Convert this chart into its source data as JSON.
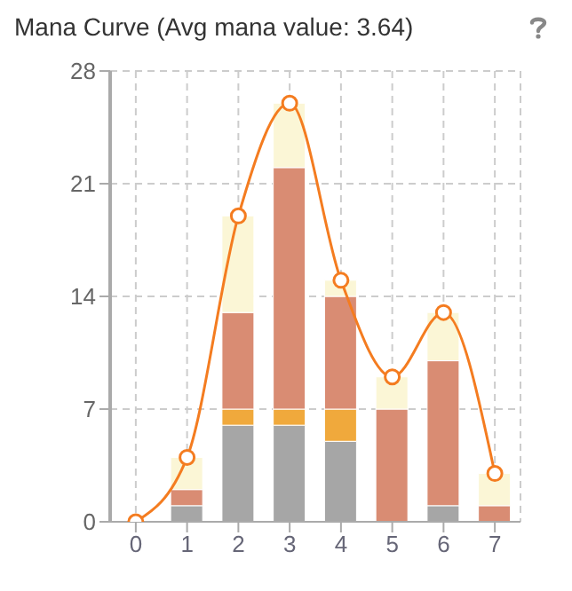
{
  "chart_data": {
    "type": "bar",
    "title": "Mana Curve (Avg mana value: 3.64)",
    "categories": [
      "0",
      "1",
      "2",
      "3",
      "4",
      "5",
      "6",
      "7"
    ],
    "stacked": true,
    "series": [
      {
        "color": "#a6a6a6",
        "values": [
          0,
          1,
          6,
          6,
          5,
          0,
          1,
          0
        ]
      },
      {
        "color": "#f0a93c",
        "values": [
          0,
          0,
          1,
          1,
          2,
          0,
          0,
          0
        ]
      },
      {
        "color": "#d98c73",
        "values": [
          0,
          1,
          6,
          15,
          7,
          7,
          9,
          1
        ]
      },
      {
        "color": "#fbf6d6",
        "values": [
          0,
          2,
          6,
          4,
          1,
          2,
          3,
          2
        ]
      },
      {
        "type": "line",
        "color": "#f47c20",
        "values": [
          0,
          4,
          19,
          26,
          15,
          9,
          13,
          3
        ],
        "marker": "circle"
      }
    ],
    "ylim": [
      0,
      28
    ],
    "yticks": [
      0,
      7,
      14,
      21,
      28
    ],
    "grid": true,
    "legend": false
  }
}
